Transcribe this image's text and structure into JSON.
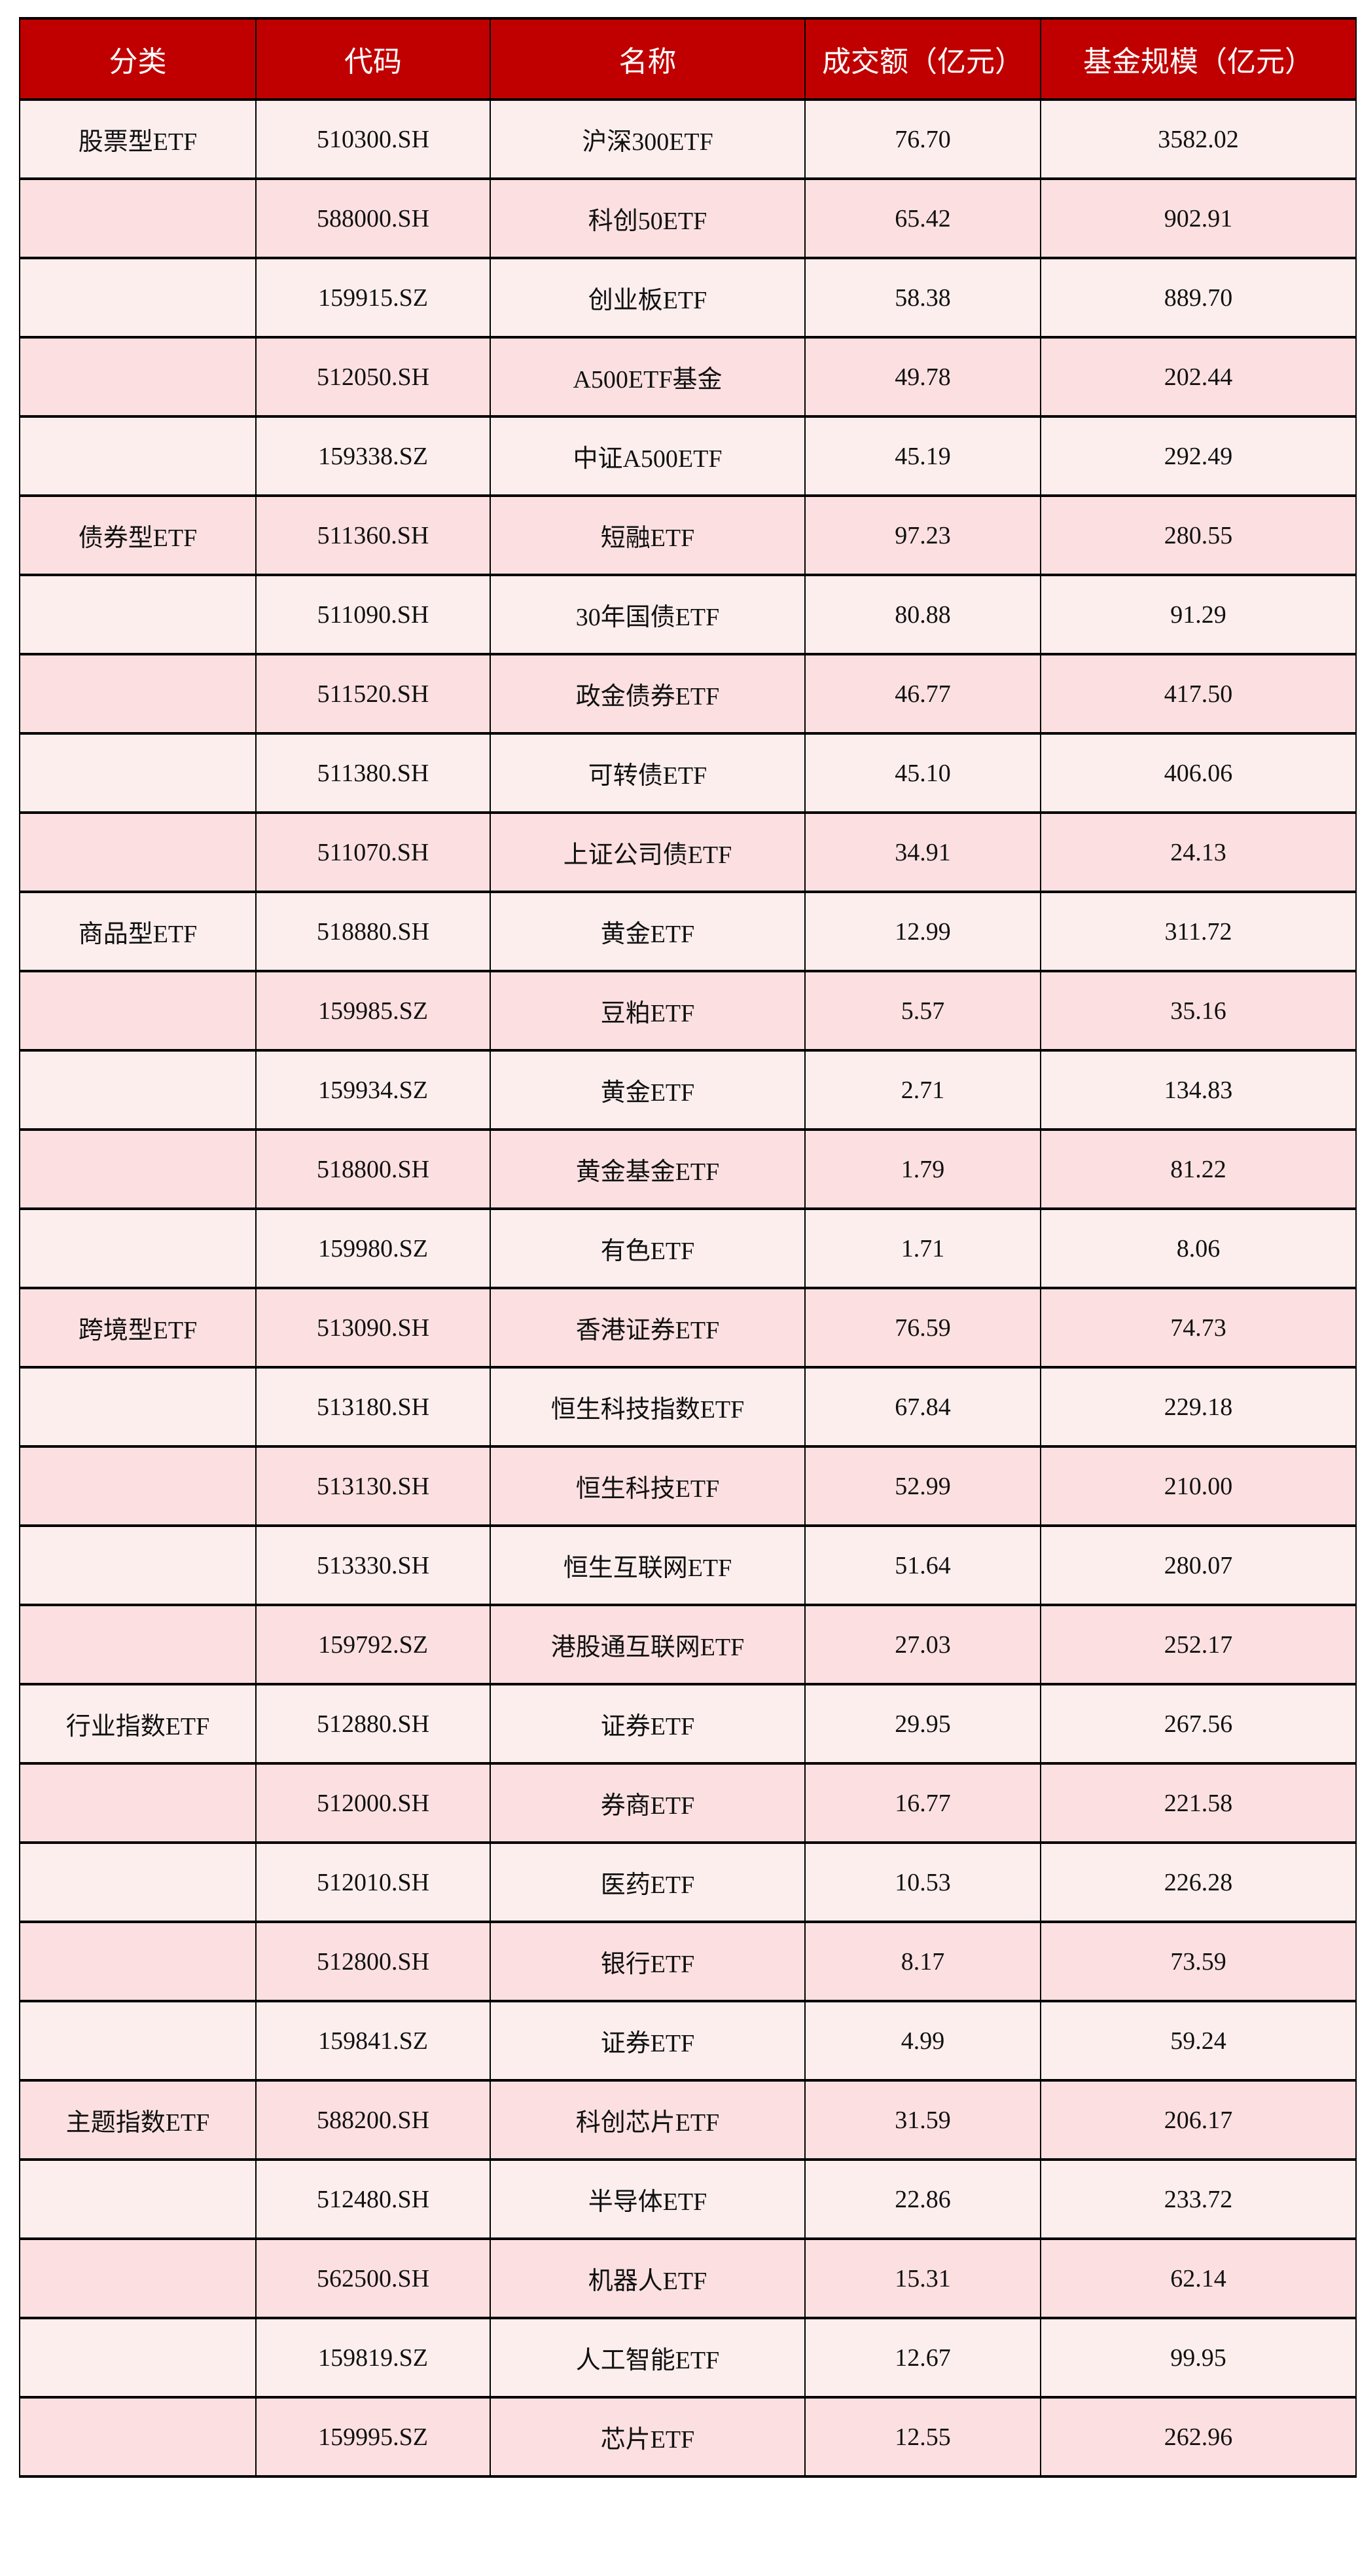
{
  "colors": {
    "header_bg": "#C00000",
    "row_light": "#FDEEEE",
    "row_dark": "#FCE0E1"
  },
  "headers": [
    "分类",
    "代码",
    "名称",
    "成交额（亿元）",
    "基金规模（亿元）"
  ],
  "rows": [
    [
      "股票型ETF",
      "510300.SH",
      "沪深300ETF",
      "76.70",
      "3582.02"
    ],
    [
      "",
      "588000.SH",
      "科创50ETF",
      "65.42",
      "902.91"
    ],
    [
      "",
      "159915.SZ",
      "创业板ETF",
      "58.38",
      "889.70"
    ],
    [
      "",
      "512050.SH",
      "A500ETF基金",
      "49.78",
      "202.44"
    ],
    [
      "",
      "159338.SZ",
      "中证A500ETF",
      "45.19",
      "292.49"
    ],
    [
      "债券型ETF",
      "511360.SH",
      "短融ETF",
      "97.23",
      "280.55"
    ],
    [
      "",
      "511090.SH",
      "30年国债ETF",
      "80.88",
      "91.29"
    ],
    [
      "",
      "511520.SH",
      "政金债券ETF",
      "46.77",
      "417.50"
    ],
    [
      "",
      "511380.SH",
      "可转债ETF",
      "45.10",
      "406.06"
    ],
    [
      "",
      "511070.SH",
      "上证公司债ETF",
      "34.91",
      "24.13"
    ],
    [
      "商品型ETF",
      "518880.SH",
      "黄金ETF",
      "12.99",
      "311.72"
    ],
    [
      "",
      "159985.SZ",
      "豆粕ETF",
      "5.57",
      "35.16"
    ],
    [
      "",
      "159934.SZ",
      "黄金ETF",
      "2.71",
      "134.83"
    ],
    [
      "",
      "518800.SH",
      "黄金基金ETF",
      "1.79",
      "81.22"
    ],
    [
      "",
      "159980.SZ",
      "有色ETF",
      "1.71",
      "8.06"
    ],
    [
      "跨境型ETF",
      "513090.SH",
      "香港证券ETF",
      "76.59",
      "74.73"
    ],
    [
      "",
      "513180.SH",
      "恒生科技指数ETF",
      "67.84",
      "229.18"
    ],
    [
      "",
      "513130.SH",
      "恒生科技ETF",
      "52.99",
      "210.00"
    ],
    [
      "",
      "513330.SH",
      "恒生互联网ETF",
      "51.64",
      "280.07"
    ],
    [
      "",
      "159792.SZ",
      "港股通互联网ETF",
      "27.03",
      "252.17"
    ],
    [
      "行业指数ETF",
      "512880.SH",
      "证券ETF",
      "29.95",
      "267.56"
    ],
    [
      "",
      "512000.SH",
      "券商ETF",
      "16.77",
      "221.58"
    ],
    [
      "",
      "512010.SH",
      "医药ETF",
      "10.53",
      "226.28"
    ],
    [
      "",
      "512800.SH",
      "银行ETF",
      "8.17",
      "73.59"
    ],
    [
      "",
      "159841.SZ",
      "证券ETF",
      "4.99",
      "59.24"
    ],
    [
      "主题指数ETF",
      "588200.SH",
      "科创芯片ETF",
      "31.59",
      "206.17"
    ],
    [
      "",
      "512480.SH",
      "半导体ETF",
      "22.86",
      "233.72"
    ],
    [
      "",
      "562500.SH",
      "机器人ETF",
      "15.31",
      "62.14"
    ],
    [
      "",
      "159819.SZ",
      "人工智能ETF",
      "12.67",
      "99.95"
    ],
    [
      "",
      "159995.SZ",
      "芯片ETF",
      "12.55",
      "262.96"
    ]
  ]
}
